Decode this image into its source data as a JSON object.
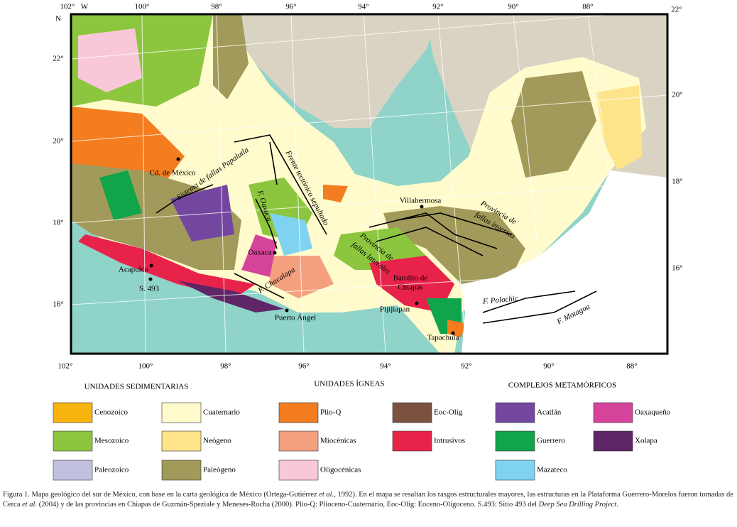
{
  "map": {
    "top_labels": [
      "102°",
      "W",
      "100°",
      "98°",
      "96°",
      "94°",
      "92°",
      "90°",
      "88°",
      "22°"
    ],
    "left_labels": [
      "N",
      "22°",
      "20°",
      "18°",
      "16°"
    ],
    "right_labels": [
      "20°",
      "18°",
      "16°"
    ],
    "bottom_labels": [
      "102°",
      "100°",
      "98°",
      "96°",
      "94°",
      "92°",
      "90°",
      "88°"
    ],
    "places": [
      "Cd. de México",
      "Sistema de fallas Papalutla",
      "Frente tectónico sepultado",
      "F. Oaxaca",
      "Oaxaca",
      "Acapulco",
      "S. 493",
      "F. Chacalapa",
      "Puerto Ángel",
      "Villahermosa",
      "Provincia de",
      "fallas inversas",
      "Provincia de",
      "fallas laterales",
      "Batolito de",
      "Chiapas",
      "Pijijiapan",
      "Tapachula",
      "F. Polochic",
      "F. Motagua"
    ]
  },
  "legend": {
    "headings": [
      "UNIDADES SEDIMENTARIAS",
      "UNIDADES ÍGNEAS",
      "COMPLEJOS METAMÓRFICOS"
    ],
    "units": [
      {
        "name": "Cenozoico",
        "color": "#f9b30f"
      },
      {
        "name": "Mesozoico",
        "color": "#8cc63e"
      },
      {
        "name": "Paleozoico",
        "color": "#c2c0e0"
      },
      {
        "name": "Cuaternario",
        "color": "#fffbcc"
      },
      {
        "name": "Neógeno",
        "color": "#fde38a"
      },
      {
        "name": "Paleógeno",
        "color": "#a29a5a"
      },
      {
        "name": "Plio-Q",
        "color": "#f47d20"
      },
      {
        "name": "Miocénicas",
        "color": "#f4a07f"
      },
      {
        "name": "Oligocénicas",
        "color": "#f9c8d8"
      },
      {
        "name": "Eoc-Olig",
        "color": "#7b5140"
      },
      {
        "name": "Intrusivos",
        "color": "#e8234a"
      },
      {
        "name": "Acatlán",
        "color": "#7347a0"
      },
      {
        "name": "Guerrero",
        "color": "#10a54a"
      },
      {
        "name": "Mazateco",
        "color": "#7fd3f0"
      },
      {
        "name": "Oaxaqueño",
        "color": "#d5449a"
      },
      {
        "name": "Xolapa",
        "color": "#5e2567"
      }
    ]
  },
  "caption": [
    "Figura 1. Mapa geológico del sur de México, con base en la carta geológica de México (Ortega-Gutiérrez ",
    "et al.",
    ", 1992). En el mapa se resaltan los rasgos estructurales mayores, las estructuras en la Plataforma Guerrero-Morelos fueron tomadas de Cerca ",
    "et al.",
    " (2004) y de las provincias en Chiapas de Guzmán-Speziale y Meneses-Rocha (2000). Plio-Q: Plioceno-Cuaternario, Eoc-Olig: Eoceno-Oligoceno. S.493: Sitio 493 del ",
    "Deep Sea Drilling Project",
    "."
  ]
}
